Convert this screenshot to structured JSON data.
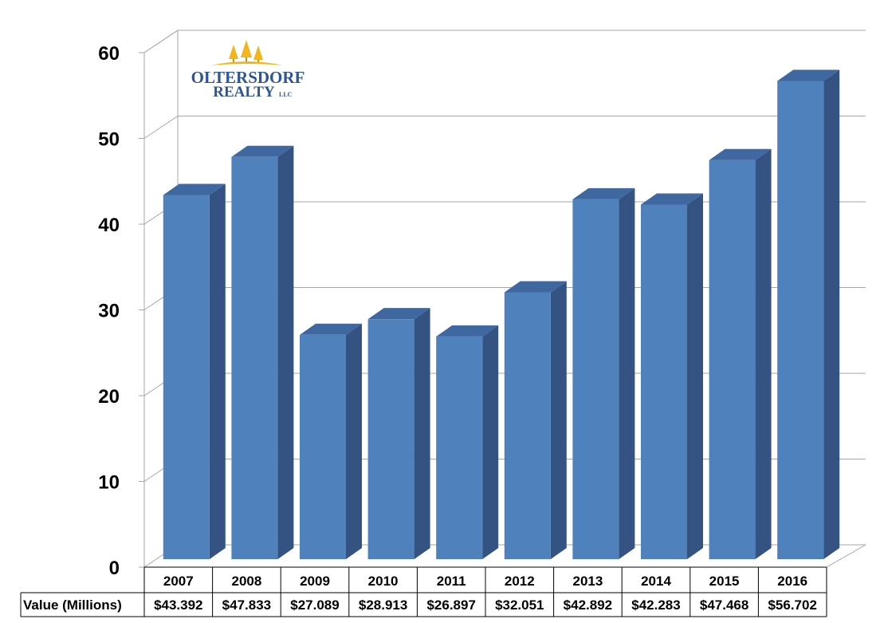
{
  "logo": {
    "line1": "OLTERSDORF",
    "line2": "REALTY",
    "suffix": "LLC"
  },
  "colors": {
    "bar_front": "#4f81bd",
    "bar_side": "#345382",
    "bar_top": "#3f67a0",
    "grid": "#a6a6a6",
    "logo_blue": "#2e5597",
    "logo_gold": "#f2b51d"
  },
  "chart_data": {
    "type": "bar",
    "title": "",
    "xlabel": "",
    "ylabel": "",
    "ylim": [
      0,
      60
    ],
    "yticks": [
      "0",
      "10",
      "20",
      "30",
      "40",
      "50",
      "60"
    ],
    "categories": [
      "2007",
      "2008",
      "2009",
      "2010",
      "2011",
      "2012",
      "2013",
      "2014",
      "2015",
      "2016"
    ],
    "series": [
      {
        "name": "Value (Millions)",
        "values": [
          43.392,
          47.833,
          27.089,
          28.913,
          26.897,
          32.051,
          42.892,
          42.283,
          47.468,
          56.702
        ],
        "labels": [
          "$43.392",
          "$47.833",
          "$27.089",
          "$28.913",
          "$26.897",
          "$32.051",
          "$42.892",
          "$42.283",
          "$47.468",
          "$56.702"
        ]
      }
    ],
    "grid": true,
    "style": "3d-column",
    "data_table": true
  }
}
